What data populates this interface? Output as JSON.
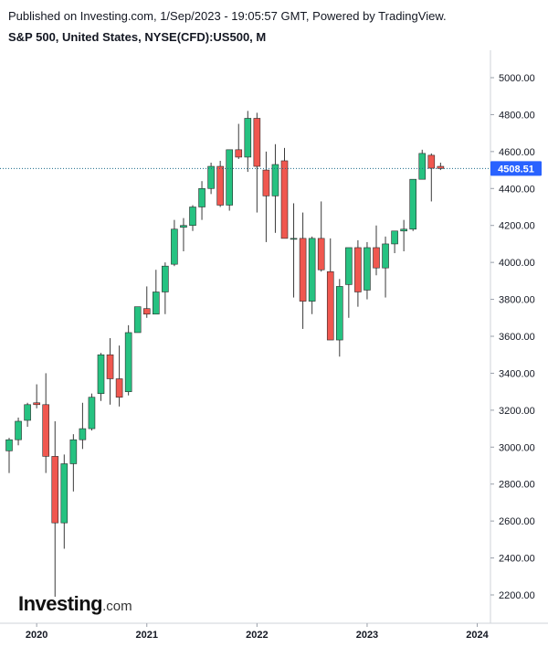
{
  "header": {
    "published": "Published on Investing.com, 1/Sep/2023 - 19:05:57 GMT, Powered by TradingView.",
    "title": "S&P 500, United States, NYSE(CFD):US500, M"
  },
  "logo": {
    "brand": "Investing",
    "suffix": ".com"
  },
  "colors": {
    "up": "#26c281",
    "down": "#f0574f",
    "wick": "#3a3a3a",
    "last_line": "#1a6b8a",
    "last_bg": "#2962ff"
  },
  "chart_data": {
    "type": "candlestick",
    "interval": "M",
    "last_value": 4508.51,
    "last_label": "4508.51",
    "ylim": [
      2100,
      5100
    ],
    "y_ticks": [
      "2200.00",
      "2400.00",
      "2600.00",
      "2800.00",
      "3000.00",
      "3200.00",
      "3400.00",
      "3600.00",
      "3800.00",
      "4000.00",
      "4200.00",
      "4400.00",
      "4600.00",
      "4800.00",
      "5000.00"
    ],
    "x_ticks": [
      "2020",
      "2021",
      "2022",
      "2023",
      "2024"
    ],
    "months": [
      "2019-10",
      "2019-11",
      "2019-12",
      "2020-01",
      "2020-02",
      "2020-03",
      "2020-04",
      "2020-05",
      "2020-06",
      "2020-07",
      "2020-08",
      "2020-09",
      "2020-10",
      "2020-11",
      "2020-12",
      "2021-01",
      "2021-02",
      "2021-03",
      "2021-04",
      "2021-05",
      "2021-06",
      "2021-07",
      "2021-08",
      "2021-09",
      "2021-10",
      "2021-11",
      "2021-12",
      "2022-01",
      "2022-02",
      "2022-03",
      "2022-04",
      "2022-05",
      "2022-06",
      "2022-07",
      "2022-08",
      "2022-09",
      "2022-10",
      "2022-11",
      "2022-12",
      "2023-01",
      "2023-02",
      "2023-03",
      "2023-04",
      "2023-05",
      "2023-06",
      "2023-07",
      "2023-08",
      "2023-09"
    ],
    "open": [
      2980,
      3040,
      3145,
      3240,
      3230,
      2950,
      2590,
      2910,
      3040,
      3100,
      3290,
      3500,
      3370,
      3300,
      3620,
      3750,
      3720,
      3840,
      3990,
      4190,
      4200,
      4300,
      4400,
      4520,
      4310,
      4610,
      4570,
      4780,
      4500,
      4360,
      4550,
      4130,
      4130,
      3790,
      4130,
      3950,
      3580,
      3880,
      4080,
      3850,
      4080,
      3970,
      4100,
      4170,
      4180,
      4450,
      4580,
      4520
    ],
    "high": [
      3050,
      3160,
      3240,
      3340,
      3400,
      3140,
      2960,
      3070,
      3240,
      3290,
      3510,
      3590,
      3550,
      3660,
      3760,
      3870,
      3960,
      4000,
      4230,
      4240,
      4310,
      4440,
      4540,
      4550,
      4610,
      4750,
      4820,
      4810,
      4600,
      4640,
      4620,
      4320,
      4270,
      4140,
      4330,
      4130,
      3910,
      4070,
      4120,
      4110,
      4200,
      4140,
      4170,
      4230,
      4450,
      4610,
      4590,
      4540
    ],
    "low": [
      2860,
      3010,
      3110,
      3210,
      2860,
      2190,
      2450,
      2760,
      2990,
      3090,
      3250,
      3230,
      3220,
      3280,
      3620,
      3700,
      3720,
      3720,
      3980,
      4060,
      4170,
      4230,
      4370,
      4300,
      4280,
      4560,
      4490,
      4270,
      4110,
      4160,
      4130,
      3810,
      3640,
      3720,
      3950,
      3590,
      3490,
      3700,
      3760,
      3800,
      3930,
      3810,
      4050,
      4060,
      4170,
      4450,
      4330,
      4500
    ],
    "close": [
      3040,
      3140,
      3230,
      3230,
      2950,
      2590,
      2910,
      3040,
      3100,
      3270,
      3500,
      3370,
      3270,
      3620,
      3760,
      3720,
      3840,
      3980,
      4180,
      4200,
      4300,
      4400,
      4520,
      4310,
      4610,
      4570,
      4780,
      4520,
      4360,
      4530,
      4130,
      4130,
      3790,
      4130,
      3960,
      3580,
      3870,
      4080,
      3840,
      4080,
      3970,
      4100,
      4170,
      4180,
      4450,
      4590,
      4510,
      4508.51
    ]
  }
}
